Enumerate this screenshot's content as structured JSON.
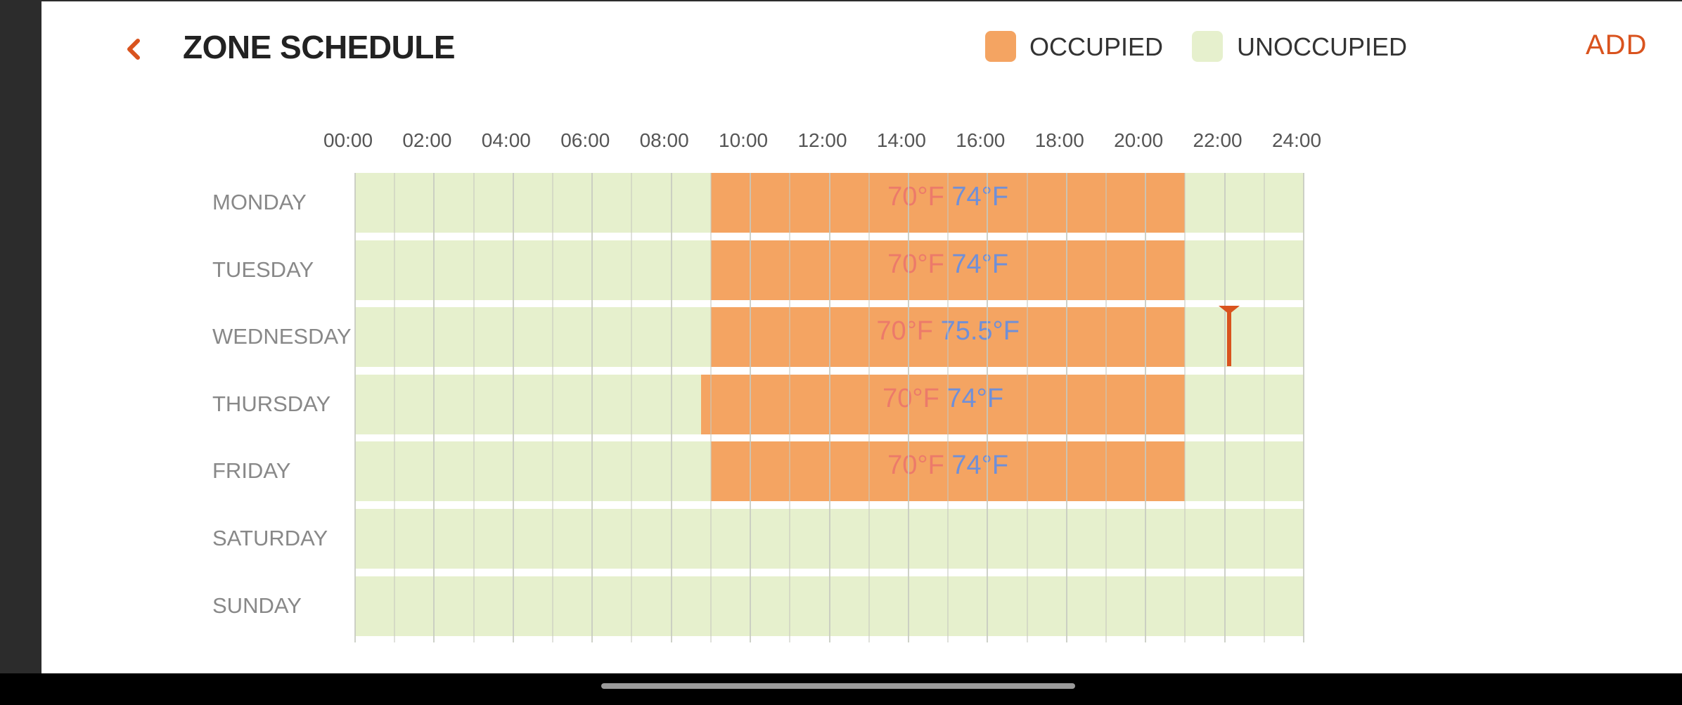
{
  "header": {
    "title": "ZONE SCHEDULE",
    "back_icon": "chevron-left-icon",
    "add_label": "ADD"
  },
  "legend": {
    "occupied": {
      "label": "OCCUPIED",
      "color": "#f4a462"
    },
    "unoccupied": {
      "label": "UNOCCUPIED",
      "color": "#e6f0cd"
    }
  },
  "colors": {
    "accent": "#d9531e",
    "heat_setpoint": "#ec7a6a",
    "cool_setpoint": "#6f8fd8"
  },
  "time_axis": [
    "00:00",
    "02:00",
    "04:00",
    "06:00",
    "08:00",
    "10:00",
    "12:00",
    "14:00",
    "16:00",
    "18:00",
    "20:00",
    "22:00",
    "24:00"
  ],
  "days": [
    {
      "label": "MONDAY",
      "occupied": {
        "start": "09:00",
        "end": "21:00",
        "heat": "70°F",
        "cool": "74°F"
      }
    },
    {
      "label": "TUESDAY",
      "occupied": {
        "start": "09:00",
        "end": "21:00",
        "heat": "70°F",
        "cool": "74°F"
      }
    },
    {
      "label": "WEDNESDAY",
      "occupied": {
        "start": "09:00",
        "end": "21:00",
        "heat": "70°F",
        "cool": "75.5°F"
      }
    },
    {
      "label": "THURSDAY",
      "occupied": {
        "start": "08:45",
        "end": "21:00",
        "heat": "70°F",
        "cool": "74°F"
      }
    },
    {
      "label": "FRIDAY",
      "occupied": {
        "start": "09:00",
        "end": "21:00",
        "heat": "70°F",
        "cool": "74°F"
      }
    },
    {
      "label": "SATURDAY",
      "occupied": null
    },
    {
      "label": "SUNDAY",
      "occupied": null
    }
  ],
  "current_time_marker": {
    "day": "WEDNESDAY",
    "time": "22:07",
    "icon": "current-time-marker-icon"
  }
}
